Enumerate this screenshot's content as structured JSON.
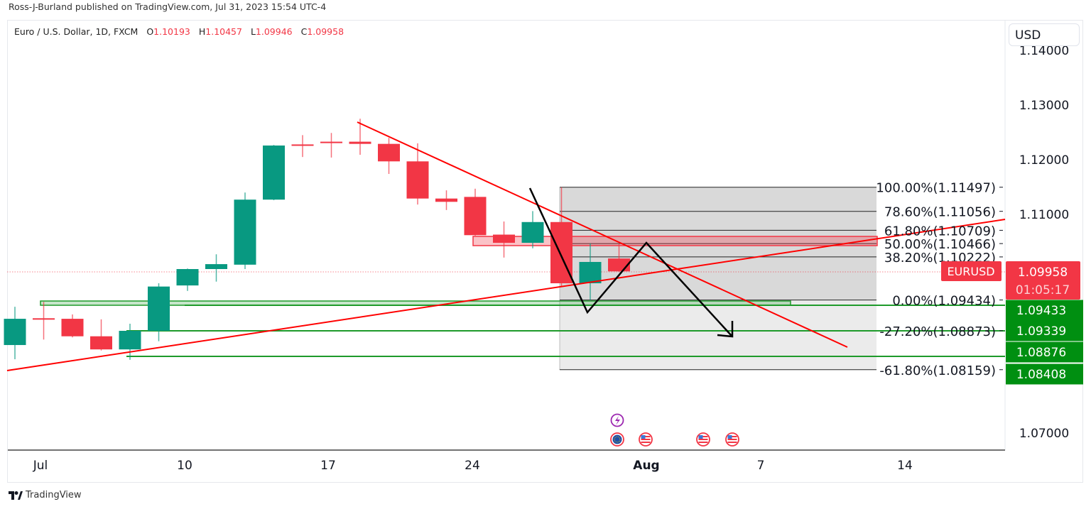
{
  "publisher": "Ross-J-Burland published on TradingView.com, Jul 31, 2023 15:54 UTC-4",
  "legend": {
    "symbol": "Euro / U.S. Dollar, 1D, FXCM",
    "o_label": "O",
    "o": "1.10193",
    "h_label": "H",
    "h": "1.10457",
    "l_label": "L",
    "l": "1.09946",
    "c_label": "C",
    "c": "1.09958"
  },
  "currency_button": "USD",
  "price_axis": [
    "1.14000",
    "1.13000",
    "1.12000",
    "1.11000",
    "1.07000"
  ],
  "time_axis": [
    "Jul",
    "10",
    "17",
    "24",
    "Aug",
    "7",
    "14"
  ],
  "symbol_tag": "EURUSD",
  "last_price": "1.09958",
  "countdown": "01:05:17",
  "green_labels": [
    "1.09433",
    "1.09339",
    "1.08876",
    "1.08408"
  ],
  "fib_labels": [
    "100.00%(1.11497)",
    "78.60%(1.11056)",
    "61.80%(1.10709)",
    "50.00%(1.10466)",
    "38.20%(1.10222)",
    "0.00%(1.09434)",
    "-27.20%(1.08873)",
    "-61.80%(1.08159)"
  ],
  "brand": "TradingView",
  "colors": {
    "up": "#089981",
    "down": "#f23645",
    "level": "#008f11",
    "trend": "#ff0000"
  },
  "chart_data": {
    "type": "candlestick",
    "title": "Euro / U.S. Dollar, 1D, FXCM",
    "ylim": [
      1.0645,
      1.1455
    ],
    "dates": [
      "Jun 30",
      "Jul 3",
      "Jul 4",
      "Jul 5",
      "Jul 6",
      "Jul 7",
      "Jul 10",
      "Jul 11",
      "Jul 12",
      "Jul 13",
      "Jul 14",
      "Jul 17",
      "Jul 18",
      "Jul 19",
      "Jul 20",
      "Jul 21",
      "Jul 24",
      "Jul 25",
      "Jul 26",
      "Jul 27",
      "Jul 28",
      "Jul 31"
    ],
    "open": [
      1.0861,
      1.091,
      1.0909,
      1.0877,
      1.0853,
      1.0887,
      1.097,
      1.1,
      1.1008,
      1.1127,
      1.1228,
      1.1233,
      1.1233,
      1.1229,
      1.1197,
      1.1129,
      1.1132,
      1.1063,
      1.1048,
      1.1086,
      1.0974,
      1.10193
    ],
    "high": [
      1.0931,
      1.094,
      1.0917,
      1.0908,
      1.09,
      1.0974,
      1.1001,
      1.1027,
      1.114,
      1.1227,
      1.1245,
      1.1249,
      1.1275,
      1.124,
      1.123,
      1.1144,
      1.1147,
      1.1087,
      1.1106,
      1.11497,
      1.1047,
      1.10457
    ],
    "low": [
      1.0835,
      1.0871,
      1.0875,
      1.0851,
      1.0834,
      1.0868,
      1.096,
      1.0977,
      1.1,
      1.1126,
      1.1205,
      1.1204,
      1.1209,
      1.1174,
      1.1118,
      1.1108,
      1.1061,
      1.1021,
      1.1038,
      1.0968,
      1.09434,
      1.09946
    ],
    "close": [
      1.0909,
      1.0909,
      1.0877,
      1.0853,
      1.0887,
      1.0968,
      1.1,
      1.1009,
      1.1127,
      1.1226,
      1.1226,
      1.1232,
      1.1229,
      1.1197,
      1.1129,
      1.1123,
      1.1062,
      1.1048,
      1.1086,
      1.0974,
      1.1013,
      1.09958
    ],
    "fib_levels": [
      1.11497,
      1.11056,
      1.10709,
      1.10466,
      1.10222,
      1.09434,
      1.08873,
      1.08159
    ],
    "horizontal_levels": [
      1.09433,
      1.09339,
      1.08876,
      1.08408
    ]
  }
}
